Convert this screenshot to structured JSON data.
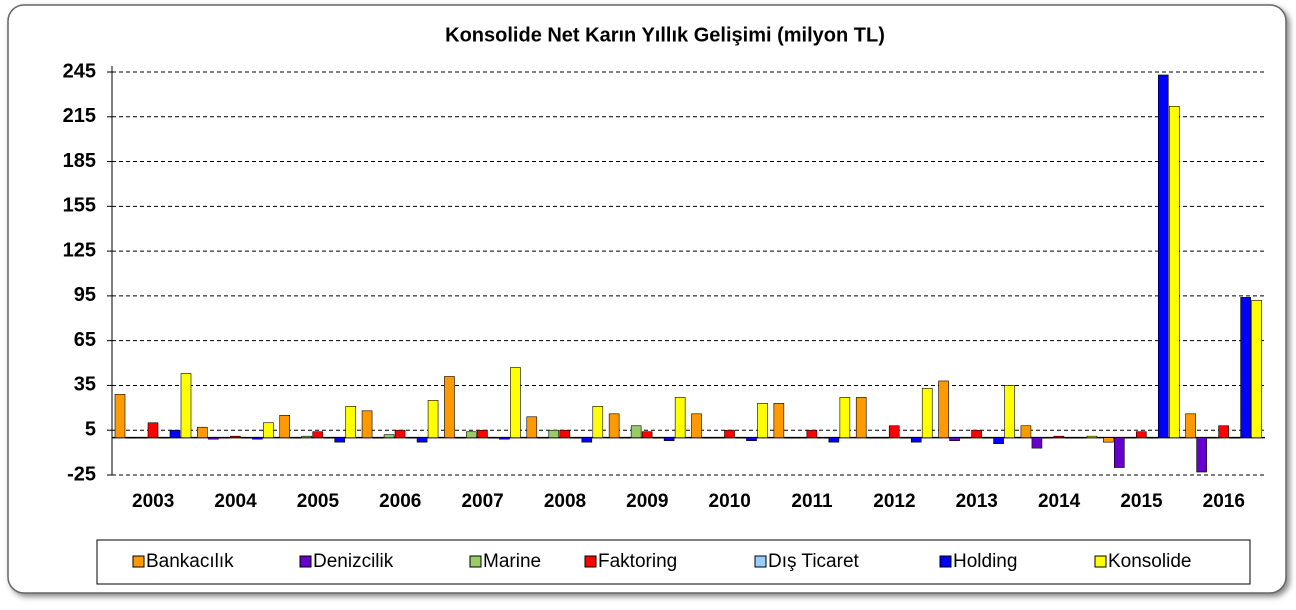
{
  "chart_data": {
    "type": "bar",
    "title": "Konsolide Net Karın Yıllık Gelişimi (milyon TL)",
    "categories": [
      "2003",
      "2004",
      "2005",
      "2006",
      "2007",
      "2008",
      "2009",
      "2010",
      "2011",
      "2012",
      "2013",
      "2014",
      "2015",
      "2016"
    ],
    "series": [
      {
        "name": "Bankacılık",
        "color": "#ff9900",
        "values": [
          29,
          7,
          15,
          18,
          41,
          14,
          16,
          16,
          23,
          27,
          38,
          8,
          -3,
          16
        ]
      },
      {
        "name": "Denizcilik",
        "color": "#6600cc",
        "values": [
          0,
          -1,
          0,
          0,
          0,
          0,
          0,
          0,
          0,
          0,
          -2,
          -7,
          -20,
          -23
        ]
      },
      {
        "name": "Marine",
        "color": "#99cc66",
        "values": [
          0,
          0,
          1,
          2,
          4,
          5,
          8,
          0,
          0,
          0,
          0,
          0,
          0,
          0
        ]
      },
      {
        "name": "Faktoring",
        "color": "#ff0000",
        "values": [
          10,
          1,
          4,
          5,
          5,
          5,
          4,
          5,
          5,
          8,
          5,
          1,
          4,
          8
        ]
      },
      {
        "name": "Dış Ticaret",
        "color": "#99ccff",
        "values": [
          0,
          0,
          0,
          0,
          0,
          0,
          0,
          0,
          0,
          0,
          0,
          0,
          0,
          0
        ]
      },
      {
        "name": "Holding",
        "color": "#0000ff",
        "values": [
          5,
          -1,
          -3,
          -3,
          -1,
          -3,
          -2,
          -2,
          -3,
          -3,
          -4,
          0,
          243,
          94
        ]
      },
      {
        "name": "Konsolide",
        "color": "#ffff00",
        "values": [
          43,
          10,
          21,
          25,
          47,
          21,
          27,
          23,
          27,
          33,
          35,
          1,
          222,
          92
        ]
      }
    ],
    "ylim": [
      -25,
      245
    ],
    "yticks": [
      -25,
      5,
      35,
      65,
      95,
      125,
      155,
      185,
      215,
      245
    ],
    "grid": true
  }
}
